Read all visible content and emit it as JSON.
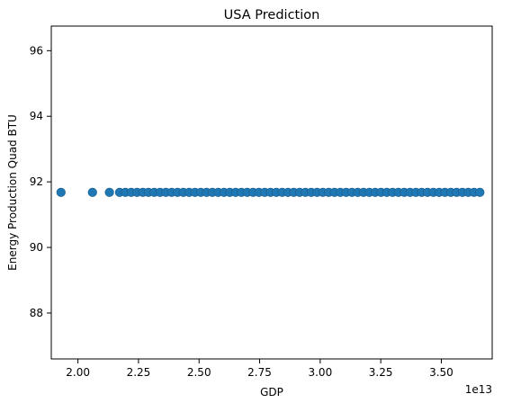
{
  "chart_data": {
    "type": "scatter",
    "title": "USA Prediction",
    "xlabel": "GDP",
    "ylabel": "Energy Production Quad BTU",
    "x_offset_label": "1e13",
    "xlim": [
      18900000000000,
      37100000000000
    ],
    "ylim": [
      86.6,
      96.75
    ],
    "xticks": [
      20000000000000,
      22500000000000,
      25000000000000,
      27500000000000,
      30000000000000,
      32500000000000,
      35000000000000
    ],
    "xtick_labels": [
      "2.00",
      "2.25",
      "2.50",
      "2.75",
      "3.00",
      "3.25",
      "3.50"
    ],
    "yticks": [
      88,
      90,
      92,
      94,
      96
    ],
    "ytick_labels": [
      "88",
      "90",
      "92",
      "94",
      "96"
    ],
    "grid": false,
    "marker_color": "#1f77b4",
    "series": [
      {
        "x": [
          19300000000000,
          20600000000000,
          21300000000000,
          21720000000000,
          21960000000000,
          22200000000000,
          22440000000000,
          22680000000000,
          22910000000000,
          23150000000000,
          23390000000000,
          23630000000000,
          23870000000000,
          24110000000000,
          24350000000000,
          24590000000000,
          24830000000000,
          25070000000000,
          25310000000000,
          25550000000000,
          25790000000000,
          26030000000000,
          26270000000000,
          26510000000000,
          26750000000000,
          26990000000000,
          27230000000000,
          27470000000000,
          27710000000000,
          27950000000000,
          28190000000000,
          28430000000000,
          28670000000000,
          28910000000000,
          29150000000000,
          29390000000000,
          29630000000000,
          29870000000000,
          30110000000000,
          30350000000000,
          30590000000000,
          30830000000000,
          31070000000000,
          31310000000000,
          31550000000000,
          31790000000000,
          32030000000000,
          32270000000000,
          32510000000000,
          32750000000000,
          32990000000000,
          33230000000000,
          33470000000000,
          33710000000000,
          33950000000000,
          34190000000000,
          34430000000000,
          34670000000000,
          34910000000000,
          35150000000000,
          35390000000000,
          35630000000000,
          35870000000000,
          36110000000000,
          36350000000000,
          36590000000000
        ],
        "y": [
          91.68,
          91.68,
          91.68,
          91.68,
          91.68,
          91.68,
          91.68,
          91.68,
          91.68,
          91.68,
          91.68,
          91.68,
          91.68,
          91.68,
          91.68,
          91.68,
          91.68,
          91.68,
          91.68,
          91.68,
          91.68,
          91.68,
          91.68,
          91.68,
          91.68,
          91.68,
          91.68,
          91.68,
          91.68,
          91.68,
          91.68,
          91.68,
          91.68,
          91.68,
          91.68,
          91.68,
          91.68,
          91.68,
          91.68,
          91.68,
          91.68,
          91.68,
          91.68,
          91.68,
          91.68,
          91.68,
          91.68,
          91.68,
          91.68,
          91.68,
          91.68,
          91.68,
          91.68,
          91.68,
          91.68,
          91.68,
          91.68,
          91.68,
          91.68,
          91.68,
          91.68,
          91.68,
          91.68,
          91.68,
          91.68,
          91.68
        ]
      }
    ]
  }
}
